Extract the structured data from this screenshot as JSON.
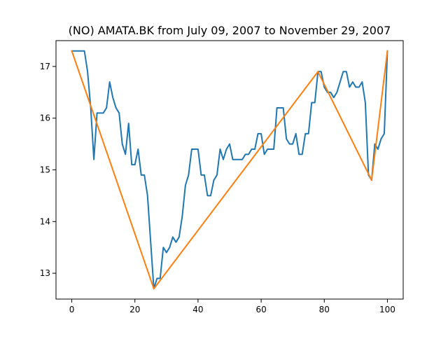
{
  "chart_data": {
    "type": "line",
    "title": "(NO) AMATA.BK from July 09, 2007 to November 29, 2007",
    "xlabel": "",
    "ylabel": "",
    "xlim": [
      -5.0,
      105.0
    ],
    "ylim": [
      12.5,
      17.5
    ],
    "xticks": [
      0,
      20,
      40,
      60,
      80,
      100
    ],
    "yticks": [
      13,
      14,
      15,
      16,
      17
    ],
    "grid": false,
    "series": [
      {
        "color": "#1f77b4",
        "x": [
          0,
          1,
          2,
          3,
          4,
          5,
          6,
          7,
          8,
          9,
          10,
          11,
          12,
          13,
          14,
          15,
          16,
          17,
          18,
          19,
          20,
          21,
          22,
          23,
          24,
          25,
          26,
          27,
          28,
          29,
          30,
          31,
          32,
          33,
          34,
          35,
          36,
          37,
          38,
          39,
          40,
          41,
          42,
          43,
          44,
          45,
          46,
          47,
          48,
          49,
          50,
          51,
          52,
          53,
          54,
          55,
          56,
          57,
          58,
          59,
          60,
          61,
          62,
          63,
          64,
          65,
          66,
          67,
          68,
          69,
          70,
          71,
          72,
          73,
          74,
          75,
          76,
          77,
          78,
          79,
          80,
          81,
          82,
          83,
          84,
          85,
          86,
          87,
          88,
          89,
          90,
          91,
          92,
          93,
          94,
          95,
          96,
          97,
          98,
          99,
          100
        ],
        "y": [
          17.3,
          17.3,
          17.3,
          17.3,
          17.3,
          16.9,
          16.2,
          15.2,
          16.1,
          16.1,
          16.1,
          16.2,
          16.7,
          16.4,
          16.2,
          16.1,
          15.5,
          15.3,
          15.9,
          15.1,
          15.1,
          15.4,
          14.9,
          14.9,
          14.5,
          13.6,
          12.7,
          12.9,
          12.9,
          13.5,
          13.4,
          13.5,
          13.7,
          13.6,
          13.7,
          14.1,
          14.7,
          14.9,
          15.4,
          15.4,
          15.4,
          14.9,
          14.9,
          14.5,
          14.5,
          14.8,
          14.9,
          15.4,
          15.2,
          15.4,
          15.5,
          15.2,
          15.2,
          15.2,
          15.2,
          15.3,
          15.3,
          15.4,
          15.4,
          15.7,
          15.7,
          15.3,
          15.4,
          15.4,
          15.4,
          16.2,
          16.2,
          16.2,
          15.6,
          15.5,
          15.5,
          15.7,
          15.3,
          15.3,
          15.7,
          15.7,
          16.3,
          16.3,
          16.9,
          16.9,
          16.6,
          16.5,
          16.5,
          16.4,
          16.5,
          16.7,
          16.9,
          16.9,
          16.6,
          16.7,
          16.6,
          16.6,
          16.7,
          16.3,
          14.9,
          14.8,
          15.5,
          15.4,
          15.6,
          15.7,
          17.3
        ]
      },
      {
        "color": "#ff7f0e",
        "x": [
          0,
          26,
          78,
          95,
          100
        ],
        "y": [
          17.3,
          12.7,
          16.9,
          14.8,
          17.3
        ]
      }
    ]
  }
}
